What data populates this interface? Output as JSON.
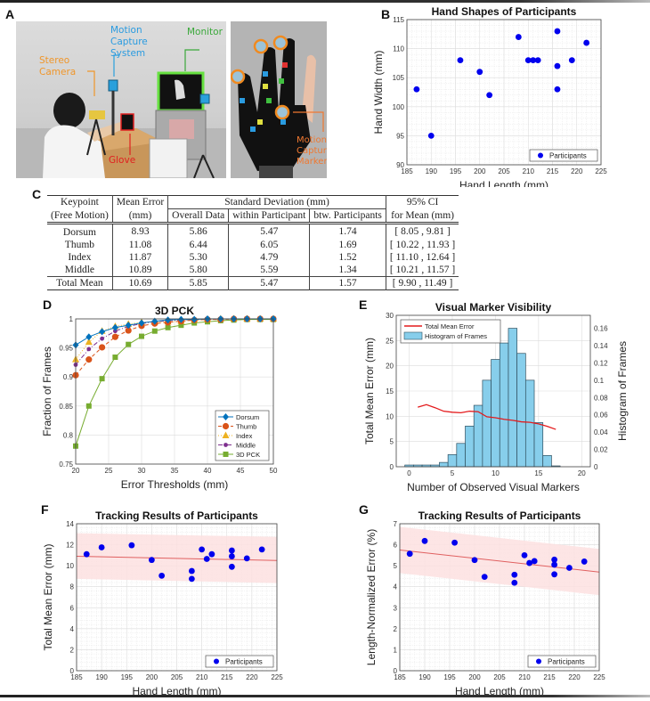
{
  "panels": {
    "A": {
      "letter": "A",
      "labels": {
        "stereo_camera": "Stereo\nCamera",
        "motion_capture_system": "Motion\nCapture\nSystem",
        "monitor": "Monitor",
        "glove": "Glove",
        "motion_capture_marker": "Motion\nCapture\nMarker"
      },
      "label_colors": {
        "stereo_camera": "#f0962a",
        "motion_capture_system": "#2a9be0",
        "monitor": "#3aa83a",
        "glove": "#e02020",
        "motion_capture_marker": "#f07830"
      }
    },
    "B": {
      "letter": "B"
    },
    "C": {
      "letter": "C",
      "header": {
        "keypoint": "Keypoint",
        "keypoint_sub": "(Free Motion)",
        "mean_error": "Mean Error",
        "mean_error_sub": "(mm)",
        "std_dev": "Standard Deviation (mm)",
        "overall": "Overall Data",
        "within": "within Participant",
        "between": "btw. Participants",
        "ci": "95% CI",
        "ci_sub": "for Mean (mm)"
      },
      "rows": [
        {
          "keypoint": "Dorsum",
          "mean": "8.93",
          "overall": "5.86",
          "within": "5.47",
          "between": "1.74",
          "ci": "[ 8.05 , 9.81 ]"
        },
        {
          "keypoint": "Thumb",
          "mean": "11.08",
          "overall": "6.44",
          "within": "6.05",
          "between": "1.69",
          "ci": "[ 10.22 , 11.93 ]"
        },
        {
          "keypoint": "Index",
          "mean": "11.87",
          "overall": "5.30",
          "within": "4.79",
          "between": "1.52",
          "ci": "[ 11.10 , 12.64 ]"
        },
        {
          "keypoint": "Middle",
          "mean": "10.89",
          "overall": "5.80",
          "within": "5.59",
          "between": "1.34",
          "ci": "[ 10.21 , 11.57 ]"
        }
      ],
      "total": {
        "keypoint": "Total Mean",
        "mean": "10.69",
        "overall": "5.85",
        "within": "5.47",
        "between": "1.57",
        "ci": "[ 9.90 , 11.49 ]"
      }
    },
    "D": {
      "letter": "D"
    },
    "E": {
      "letter": "E"
    },
    "F": {
      "letter": "F"
    },
    "G": {
      "letter": "G"
    }
  },
  "chart_data": [
    {
      "id": "B",
      "type": "scatter",
      "title": "Hand Shapes of Participants",
      "xlabel": "Hand Length (mm)",
      "ylabel": "Hand Width (mm)",
      "xlim": [
        185,
        225
      ],
      "ylim": [
        90,
        115
      ],
      "xticks": [
        185,
        190,
        195,
        200,
        205,
        210,
        215,
        220,
        225
      ],
      "yticks": [
        90,
        95,
        100,
        105,
        110,
        115
      ],
      "grid": "minor",
      "legend": {
        "position": "bottom-right",
        "entries": [
          "Participants"
        ]
      },
      "color": "#0000ee",
      "series": [
        {
          "name": "Participants",
          "x": [
            187,
            190,
            196,
            200,
            202,
            208,
            210,
            211,
            212,
            216,
            216,
            216,
            219,
            222
          ],
          "y": [
            103,
            95,
            108,
            106,
            102,
            112,
            108,
            108,
            108,
            113,
            107,
            103,
            108,
            111
          ]
        }
      ]
    },
    {
      "id": "D",
      "type": "line",
      "title": "3D PCK",
      "xlabel": "Error Thresholds (mm)",
      "ylabel": "Fraction of Frames",
      "xlim": [
        20,
        50
      ],
      "ylim": [
        0.75,
        1
      ],
      "xticks": [
        20,
        25,
        30,
        35,
        40,
        45,
        50
      ],
      "yticks": [
        0.75,
        0.8,
        0.85,
        0.9,
        0.95,
        1
      ],
      "grid": "major",
      "legend": {
        "position": "bottom-right",
        "entries": [
          "Dorsum",
          "Thumb",
          "Index",
          "Middle",
          "3D PCK"
        ]
      },
      "x": [
        20,
        22,
        24,
        26,
        28,
        30,
        32,
        34,
        36,
        38,
        40,
        42,
        44,
        46,
        48,
        50
      ],
      "series": [
        {
          "name": "Dorsum",
          "color": "#0072bd",
          "marker": "diamond",
          "dash": "solid",
          "values": [
            0.955,
            0.969,
            0.978,
            0.985,
            0.989,
            0.993,
            0.996,
            0.998,
            0.999,
            0.999,
            1.0,
            1.0,
            1.0,
            1.0,
            1.0,
            1.0
          ]
        },
        {
          "name": "Thumb",
          "color": "#d95319",
          "marker": "circle",
          "dash": "dashed",
          "values": [
            0.903,
            0.93,
            0.951,
            0.969,
            0.98,
            0.988,
            0.992,
            0.994,
            0.996,
            0.998,
            0.999,
            0.999,
            1.0,
            1.0,
            1.0,
            1.0
          ]
        },
        {
          "name": "Index",
          "color": "#edb120",
          "marker": "triangle",
          "dash": "dotted",
          "values": [
            0.93,
            0.96,
            0.979,
            0.987,
            0.991,
            0.994,
            0.995,
            0.995,
            0.996,
            0.998,
            0.999,
            1.0,
            1.0,
            1.0,
            1.0,
            1.0
          ]
        },
        {
          "name": "Middle",
          "color": "#7e2f8e",
          "marker": "asterisk",
          "dash": "dashdot",
          "values": [
            0.921,
            0.948,
            0.966,
            0.979,
            0.987,
            0.992,
            0.995,
            0.997,
            0.998,
            0.999,
            0.999,
            1.0,
            1.0,
            1.0,
            1.0,
            1.0
          ]
        },
        {
          "name": "3D PCK",
          "color": "#77ac30",
          "marker": "square",
          "dash": "solid",
          "values": [
            0.781,
            0.85,
            0.897,
            0.934,
            0.956,
            0.97,
            0.979,
            0.985,
            0.989,
            0.993,
            0.995,
            0.997,
            0.998,
            0.999,
            0.999,
            0.999
          ]
        }
      ]
    },
    {
      "id": "E",
      "type": "bar",
      "title": "Visual Marker Visibility",
      "xlabel": "Number of Observed Visual Markers",
      "ylabel": "Total Mean Error (mm)",
      "ylabel_right": "Histogram of Frames",
      "xlim": [
        -1.5,
        21
      ],
      "ylim": [
        0,
        30
      ],
      "ylim_right": [
        0,
        0.175
      ],
      "xticks": [
        0,
        5,
        10,
        15,
        20
      ],
      "yticks": [
        0,
        5,
        10,
        15,
        20,
        25,
        30
      ],
      "yticks_right": [
        0,
        0.02,
        0.04,
        0.06,
        0.08,
        0.1,
        0.12,
        0.14,
        0.16
      ],
      "grid": "major",
      "legend": {
        "position": "top-left",
        "entries": [
          "Total Mean Error",
          "Histogram of Frames"
        ]
      },
      "histogram": {
        "name": "Histogram of Frames",
        "color": "#87ceeb",
        "bins": [
          0,
          1,
          2,
          3,
          4,
          5,
          6,
          7,
          8,
          9,
          10,
          11,
          12,
          13,
          14,
          15,
          16,
          17
        ],
        "values": [
          0.002,
          0.002,
          0.002,
          0.002,
          0.005,
          0.014,
          0.027,
          0.047,
          0.071,
          0.1,
          0.124,
          0.143,
          0.16,
          0.131,
          0.1,
          0.051,
          0.013,
          0.001
        ]
      },
      "line": {
        "name": "Total Mean Error",
        "color": "#e41a1c",
        "x": [
          1,
          2,
          3,
          4,
          5,
          6,
          7,
          8,
          9,
          10,
          11,
          12,
          13,
          14,
          15,
          16,
          17
        ],
        "values": [
          11.8,
          12.3,
          11.7,
          11.0,
          10.8,
          10.7,
          11.0,
          10.9,
          9.9,
          9.7,
          9.4,
          9.2,
          8.9,
          8.8,
          8.5,
          8.0,
          7.4
        ]
      }
    },
    {
      "id": "F",
      "type": "scatter",
      "title": "Tracking Results of Participants",
      "xlabel": "Hand Length (mm)",
      "ylabel": "Total Mean Error (mm)",
      "xlim": [
        185,
        225
      ],
      "ylim": [
        0,
        14
      ],
      "xticks": [
        185,
        190,
        195,
        200,
        205,
        210,
        215,
        220,
        225
      ],
      "yticks": [
        0,
        2,
        4,
        6,
        8,
        10,
        12,
        14
      ],
      "grid": "minor",
      "legend": {
        "position": "bottom-right",
        "entries": [
          "Participants"
        ]
      },
      "color": "#0000ee",
      "series": [
        {
          "name": "Participants",
          "x": [
            187,
            190,
            196,
            200,
            202,
            208,
            208,
            210,
            211,
            212,
            216,
            216,
            216,
            219,
            222
          ],
          "y": [
            11.1,
            11.75,
            11.95,
            10.55,
            9.05,
            9.5,
            8.75,
            11.55,
            10.65,
            11.1,
            11.45,
            10.9,
            9.9,
            10.7,
            11.55
          ]
        }
      ],
      "fit": {
        "x": [
          185,
          225
        ],
        "y": [
          10.9,
          10.5
        ],
        "color": "#e06060"
      },
      "band": {
        "upper": [
          13.1,
          12.75
        ],
        "lower": [
          8.75,
          8.35
        ],
        "color": "#fde0e0"
      }
    },
    {
      "id": "G",
      "type": "scatter",
      "title": "Tracking Results of Participants",
      "xlabel": "Hand Length (mm)",
      "ylabel": "Length-Normalized Error (%)",
      "xlim": [
        185,
        225
      ],
      "ylim": [
        0,
        7
      ],
      "xticks": [
        185,
        190,
        195,
        200,
        205,
        210,
        215,
        220,
        225
      ],
      "yticks": [
        0,
        1,
        2,
        3,
        4,
        5,
        6,
        7
      ],
      "grid": "minor",
      "legend": {
        "position": "bottom-right",
        "entries": [
          "Participants"
        ]
      },
      "color": "#0000ee",
      "series": [
        {
          "name": "Participants",
          "x": [
            187,
            190,
            196,
            200,
            202,
            208,
            208,
            210,
            211,
            212,
            216,
            216,
            216,
            219,
            222
          ],
          "y": [
            5.57,
            6.18,
            6.1,
            5.27,
            4.47,
            4.57,
            4.19,
            5.5,
            5.13,
            5.22,
            5.29,
            5.05,
            4.59,
            4.9,
            5.2
          ]
        }
      ],
      "fit": {
        "x": [
          185,
          225
        ],
        "y": [
          5.75,
          4.7
        ],
        "color": "#e06060"
      },
      "band": {
        "upper": [
          6.85,
          5.8
        ],
        "lower": [
          4.65,
          3.6
        ],
        "color": "#fde0e0"
      }
    }
  ]
}
